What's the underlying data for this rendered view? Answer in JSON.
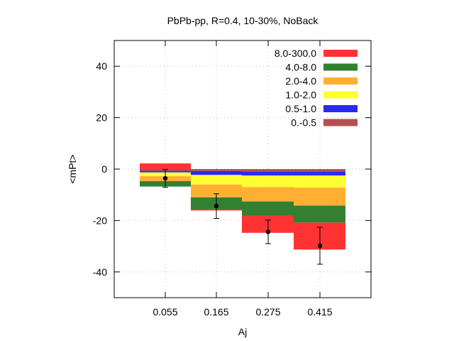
{
  "chart_data": {
    "type": "bar",
    "title": "PbPb-pp, R=0.4, 10-30%, NoBack",
    "xlabel": "Aj",
    "ylabel": "<mPt>",
    "ylim": [
      -50,
      50
    ],
    "yticks": [
      -40,
      -20,
      0,
      20,
      40
    ],
    "grid": true,
    "legend_position": "top-right",
    "categories": [
      "0.055",
      "0.165",
      "0.275",
      "0.415"
    ],
    "series": [
      {
        "name": "0.-0.5",
        "color": "#b45050",
        "values": [
          -0.7,
          -0.8,
          -1.0,
          -1.0
        ]
      },
      {
        "name": "0.5-1.0",
        "color": "#2a2af0",
        "values": [
          -0.6,
          -1.5,
          -1.5,
          -1.5
        ]
      },
      {
        "name": "1.0-2.0",
        "color": "#ffff33",
        "values": [
          -1.5,
          -3.7,
          -4.5,
          -4.7
        ]
      },
      {
        "name": "2.0-4.0",
        "color": "#ffb033",
        "values": [
          -1.9,
          -5.0,
          -5.6,
          -7.0
        ]
      },
      {
        "name": "4.0-8.0",
        "color": "#338033",
        "values": [
          -2.1,
          -4.6,
          -5.5,
          -6.6
        ]
      },
      {
        "name": "8.0-300.0",
        "color": "#ff3333",
        "values": [
          2.2,
          -0.5,
          -6.7,
          -10.5
        ]
      }
    ],
    "points": {
      "y": [
        -3.6,
        -14.4,
        -24.4,
        -29.8
      ],
      "err": [
        3.5,
        4.8,
        4.6,
        7.2
      ]
    }
  }
}
